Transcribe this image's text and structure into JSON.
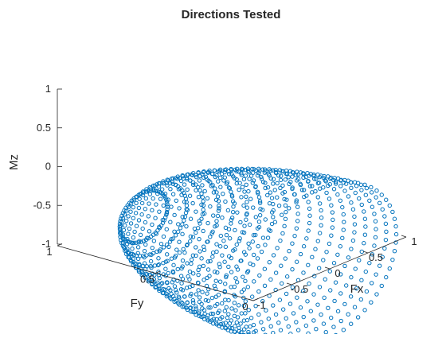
{
  "chart_data": {
    "type": "scatter",
    "title": "Directions Tested",
    "xlabel": "Fx",
    "ylabel": "Fy",
    "zlabel": "Mz",
    "xlim": [
      -1,
      1
    ],
    "ylim": [
      0,
      1
    ],
    "zlim": [
      -1,
      1
    ],
    "xticks": [
      "-1",
      "-0.5",
      "0",
      "0.5",
      "1"
    ],
    "yticks": [
      "0",
      "0.5",
      "1"
    ],
    "zticks": [
      "-1",
      "-0.5",
      "0",
      "0.5",
      "1"
    ],
    "marker": "open-circle",
    "color": "#0072bd",
    "grid": false,
    "series": [
      {
        "points_description_values": {
          "fy_levels": [
            0.05,
            0.1,
            0.15,
            0.2,
            0.25,
            0.3,
            0.35,
            0.4,
            0.45,
            0.5,
            0.55,
            0.6,
            0.65,
            0.7,
            0.75,
            0.8,
            0.85,
            0.9,
            0.95
          ],
          "points_per_ring": 60
        }
      }
    ]
  }
}
